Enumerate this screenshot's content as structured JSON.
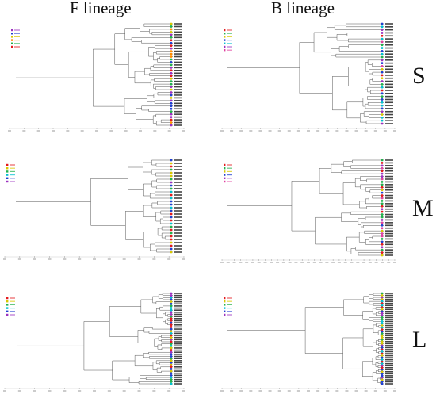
{
  "columns": {
    "left": "F lineage",
    "right": "B lineage"
  },
  "rows": {
    "top": "S",
    "middle": "M",
    "bottom": "L"
  },
  "colors": {
    "red": "#e31a1c",
    "orange": "#ff8c00",
    "yellow": "#d8c800",
    "green": "#22b14c",
    "cyan": "#00c0d0",
    "blue": "#1f3fd0",
    "purple": "#9b30c0",
    "magenta": "#e040a0",
    "branch": "#555555"
  },
  "panels": [
    {
      "id": "F-S",
      "leaves": 38,
      "palette": [
        "purple",
        "blue",
        "yellow",
        "orange",
        "green",
        "red"
      ]
    },
    {
      "id": "B-S",
      "leaves": 34,
      "palette": [
        "red",
        "green",
        "yellow",
        "blue",
        "cyan",
        "purple",
        "magenta"
      ]
    },
    {
      "id": "F-M",
      "leaves": 30,
      "palette": [
        "red",
        "yellow",
        "green",
        "cyan",
        "blue",
        "purple"
      ]
    },
    {
      "id": "B-M",
      "leaves": 36,
      "palette": [
        "red",
        "green",
        "yellow",
        "blue",
        "purple",
        "magenta"
      ]
    },
    {
      "id": "F-L",
      "leaves": 44,
      "palette": [
        "red",
        "yellow",
        "green",
        "cyan",
        "blue",
        "purple"
      ]
    },
    {
      "id": "B-L",
      "leaves": 46,
      "palette": [
        "red",
        "yellow",
        "green",
        "cyan",
        "blue",
        "purple"
      ]
    }
  ]
}
